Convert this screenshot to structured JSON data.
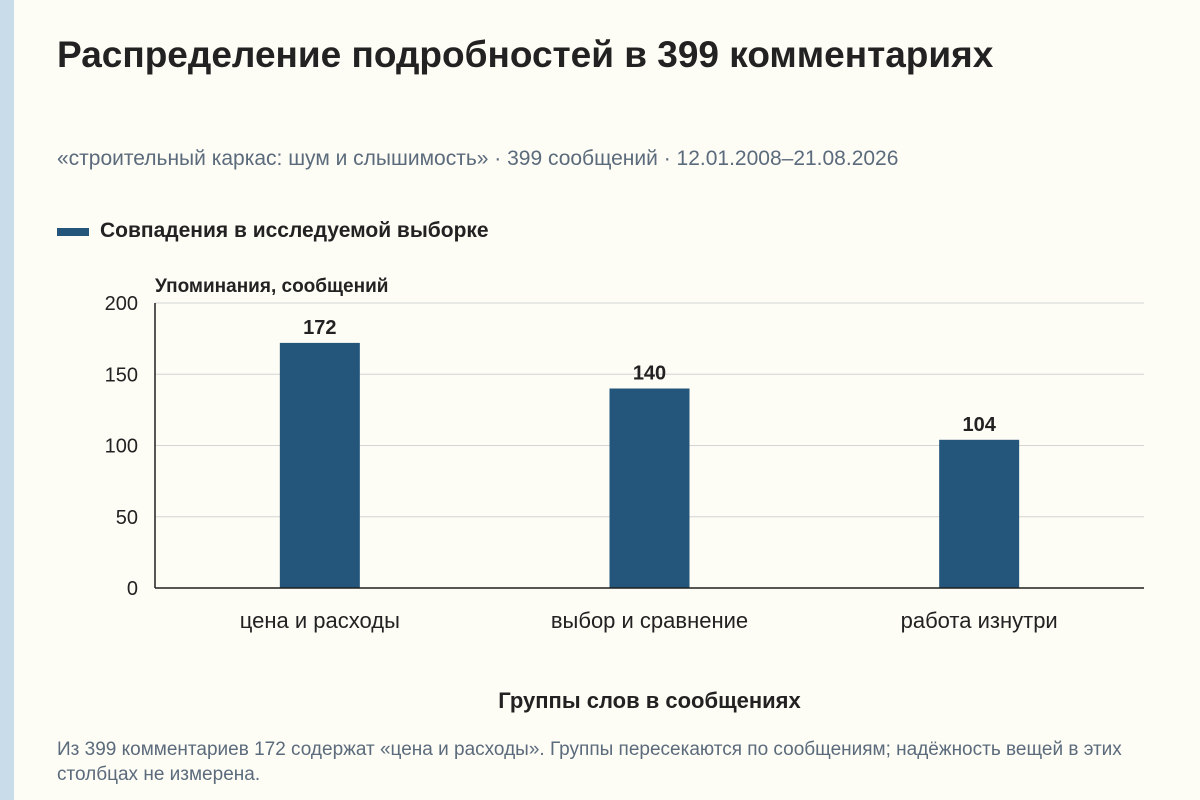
{
  "title": "Распределение подробностей в 399 комментариях",
  "subtitle": "«строительный каркас: шум и слышимость» · 399 сообщений · 12.01.2008–21.08.2026",
  "footnote": "Из 399 комментариев 172 содержат «цена и расходы». Группы пересекаются по сообщениям; надёжность вещей в этих столбцах не измерена.",
  "colors": {
    "bar": "#24567b",
    "grid": "#d4d4d4",
    "axis": "#1f1f1f",
    "text": "#222222",
    "muted": "#5b6b7c",
    "edge": "#c9dcea",
    "background": "#fdfcf5"
  },
  "chart_data": {
    "type": "bar",
    "categories": [
      "цена и расходы",
      "выбор и сравнение",
      "работа изнутри"
    ],
    "series": [
      {
        "name": "Совпадения в исследуемой выборке",
        "values": [
          172,
          140,
          104
        ]
      }
    ],
    "xlabel": "Группы слов в сообщениях",
    "ylabel": "Упоминания, сообщений",
    "ylim": [
      0,
      200
    ],
    "yticks": [
      0,
      50,
      100,
      150,
      200
    ],
    "grid": true,
    "legend": "top-left",
    "data_labels": true
  }
}
